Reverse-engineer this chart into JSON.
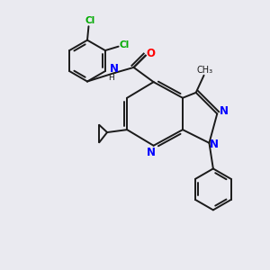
{
  "background_color": "#eaeaf0",
  "bond_color": "#1a1a1a",
  "nitrogen_color": "#0000ff",
  "oxygen_color": "#ff0000",
  "chlorine_color": "#00aa00",
  "carbon_color": "#1a1a1a",
  "figsize": [
    3.0,
    3.0
  ],
  "dpi": 100,
  "xlim": [
    0,
    10
  ],
  "ylim": [
    0,
    10
  ]
}
